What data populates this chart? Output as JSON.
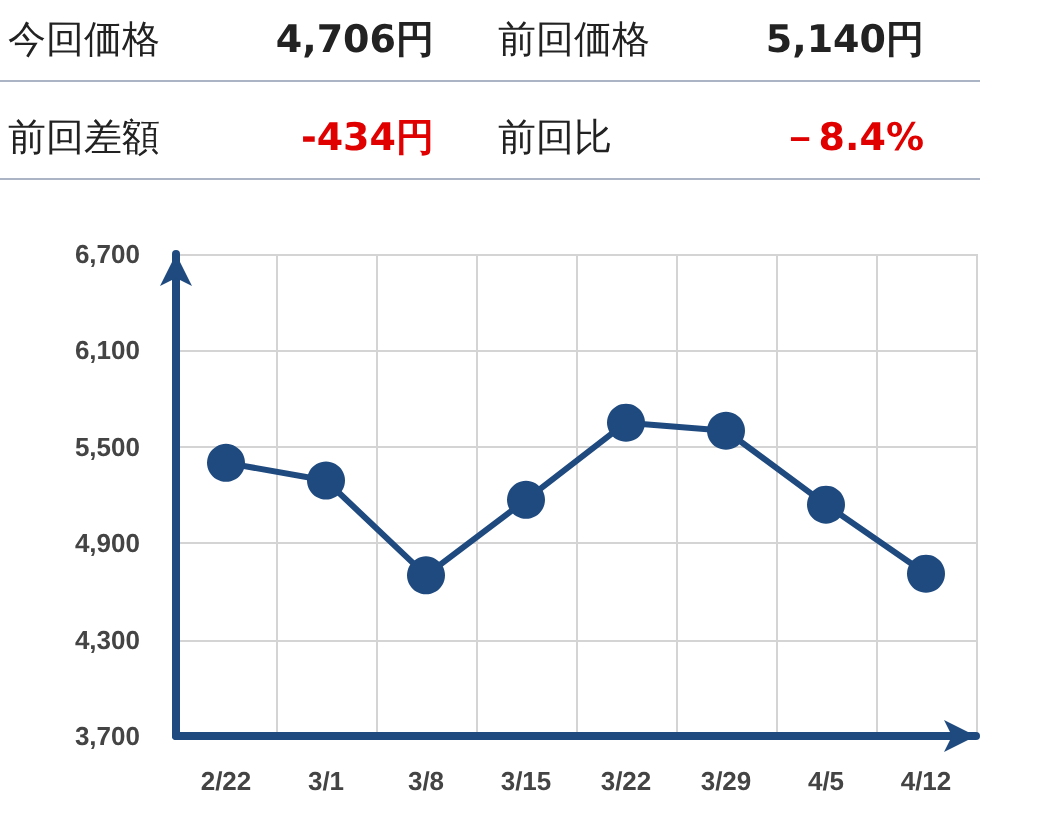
{
  "chart_data": {
    "type": "line",
    "annotations": [
      "今回価格",
      "4,706円",
      "前回価格",
      "5,140円",
      "前回差額",
      "-434円",
      "前回比",
      "－8.4%"
    ],
    "categories": [
      "2/22",
      "3/1",
      "3/8",
      "3/15",
      "3/22",
      "3/29",
      "4/5",
      "4/12"
    ],
    "series": [
      {
        "color": "#1f4a7f",
        "values": [
          5400,
          5290,
          4700,
          5170,
          5650,
          5600,
          5140,
          4710
        ]
      }
    ],
    "ylim": [
      3700,
      6700
    ],
    "yticks": [
      {
        "value": 3700,
        "label": "3,700"
      },
      {
        "value": 4300,
        "label": "4,300"
      },
      {
        "value": 4900,
        "label": "4,900"
      },
      {
        "value": 5500,
        "label": "5,500"
      },
      {
        "value": 6100,
        "label": "6,100"
      },
      {
        "value": 6700,
        "label": "6,700"
      }
    ],
    "grid": true,
    "marker": "circle",
    "line_style": "solid"
  }
}
